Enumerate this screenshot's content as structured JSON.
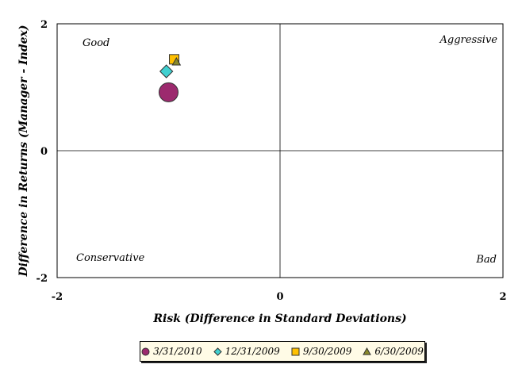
{
  "chart_data": {
    "type": "scatter",
    "title": "",
    "xlabel": "Risk (Difference in Standard Deviations)",
    "ylabel": "Difference in Returns (Manager - Index)",
    "xlim": [
      -2,
      2
    ],
    "ylim": [
      -2,
      2
    ],
    "x_ticks": [
      "-2",
      "0",
      "2"
    ],
    "y_ticks": [
      "2",
      "0",
      "-2"
    ],
    "grid": false,
    "legend_position": "bottom",
    "quadrant_labels": {
      "top_left": "Good",
      "top_right": "Aggressive",
      "bottom_left": "Conservative",
      "bottom_right": "Bad"
    },
    "series": [
      {
        "name": "3/31/2010",
        "marker": "circle",
        "color": "#9c2a6e",
        "points": [
          {
            "x": -1.0,
            "y": 0.92
          }
        ]
      },
      {
        "name": "12/31/2009",
        "marker": "diamond",
        "color": "#40d0d0",
        "points": [
          {
            "x": -1.02,
            "y": 1.25
          }
        ]
      },
      {
        "name": "9/30/2009",
        "marker": "square",
        "color": "#ffc000",
        "points": [
          {
            "x": -0.95,
            "y": 1.44
          }
        ]
      },
      {
        "name": "6/30/2009",
        "marker": "triangle",
        "color": "#8a8a2a",
        "points": [
          {
            "x": -0.93,
            "y": 1.4
          }
        ]
      }
    ]
  }
}
